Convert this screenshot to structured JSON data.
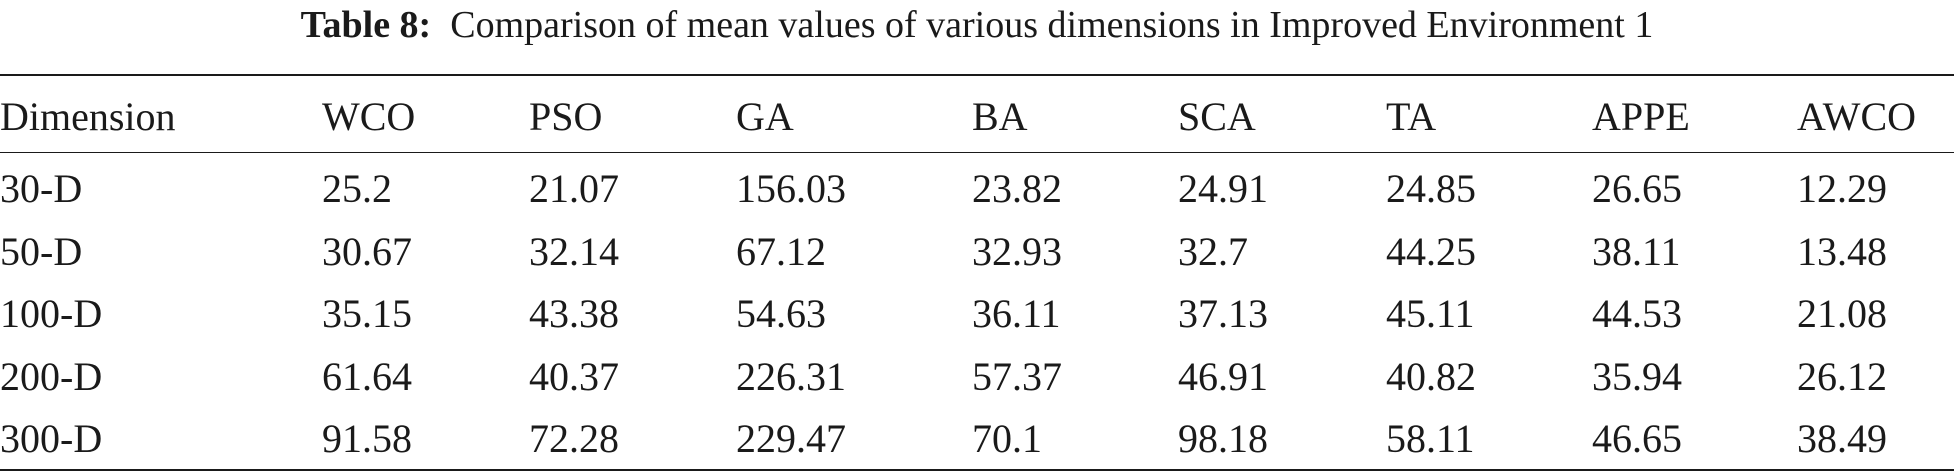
{
  "caption": {
    "label": "Table 8:",
    "text": "Comparison of mean values of various dimensions in Improved Environment 1"
  },
  "table": {
    "headers": [
      "Dimension",
      "WCO",
      "PSO",
      "GA",
      "BA",
      "SCA",
      "TA",
      "APPE",
      "AWCO"
    ],
    "rows": [
      [
        "30-D",
        "25.2",
        "21.07",
        "156.03",
        "23.82",
        "24.91",
        "24.85",
        "26.65",
        "12.29"
      ],
      [
        "50-D",
        "30.67",
        "32.14",
        "67.12",
        "32.93",
        "32.7",
        "44.25",
        "38.11",
        "13.48"
      ],
      [
        "100-D",
        "35.15",
        "43.38",
        "54.63",
        "36.11",
        "37.13",
        "45.11",
        "44.53",
        "21.08"
      ],
      [
        "200-D",
        "61.64",
        "40.37",
        "226.31",
        "57.37",
        "46.91",
        "40.82",
        "35.94",
        "26.12"
      ],
      [
        "300-D",
        "91.58",
        "72.28",
        "229.47",
        "70.1",
        "98.18",
        "58.11",
        "46.65",
        "38.49"
      ]
    ]
  }
}
